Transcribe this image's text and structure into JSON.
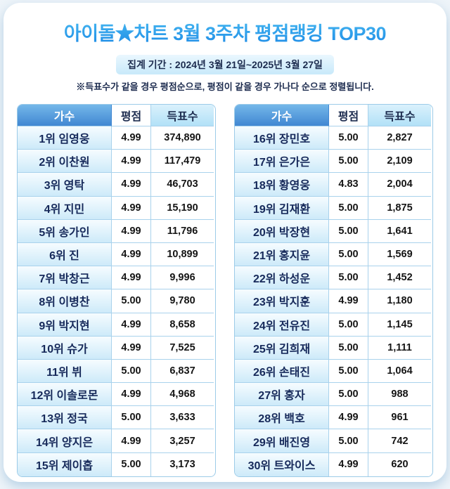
{
  "header": {
    "title": "아이돌★차트 3월 3주차 평점랭킹 TOP30",
    "period": "집계 기간 : 2024년 3월 21일~2025년 3월 27일",
    "note": "※득표수가 같을 경우 평점순으로, 평점이 같을 경우 가나다 순으로 정렬됩니다."
  },
  "colors": {
    "title_gradient_top": "#5fd4f7",
    "title_gradient_bottom": "#1e8be6",
    "header_blue": "#4187d2",
    "cell_light_blue": "#cdeaf9",
    "border_blue": "#a9d2ec"
  },
  "table": {
    "columns": [
      "가수",
      "평점",
      "득표수"
    ],
    "left_rows": [
      {
        "artist": "1위 임영웅",
        "rating": "4.99",
        "votes": "374,890"
      },
      {
        "artist": "2위 이찬원",
        "rating": "4.99",
        "votes": "117,479"
      },
      {
        "artist": "3위 영탁",
        "rating": "4.99",
        "votes": "46,703"
      },
      {
        "artist": "4위 지민",
        "rating": "4.99",
        "votes": "15,190"
      },
      {
        "artist": "5위 송가인",
        "rating": "4.99",
        "votes": "11,796"
      },
      {
        "artist": "6위 진",
        "rating": "4.99",
        "votes": "10,899"
      },
      {
        "artist": "7위 박창근",
        "rating": "4.99",
        "votes": "9,996"
      },
      {
        "artist": "8위 이병찬",
        "rating": "5.00",
        "votes": "9,780"
      },
      {
        "artist": "9위 박지현",
        "rating": "4.99",
        "votes": "8,658"
      },
      {
        "artist": "10위 슈가",
        "rating": "4.99",
        "votes": "7,525"
      },
      {
        "artist": "11위 뷔",
        "rating": "5.00",
        "votes": "6,837"
      },
      {
        "artist": "12위 이솔로몬",
        "rating": "4.99",
        "votes": "4,968"
      },
      {
        "artist": "13위 정국",
        "rating": "5.00",
        "votes": "3,633"
      },
      {
        "artist": "14위 양지은",
        "rating": "4.99",
        "votes": "3,257"
      },
      {
        "artist": "15위 제이홉",
        "rating": "5.00",
        "votes": "3,173"
      }
    ],
    "right_rows": [
      {
        "artist": "16위 장민호",
        "rating": "5.00",
        "votes": "2,827"
      },
      {
        "artist": "17위 은가은",
        "rating": "5.00",
        "votes": "2,109"
      },
      {
        "artist": "18위 황영웅",
        "rating": "4.83",
        "votes": "2,004"
      },
      {
        "artist": "19위 김재환",
        "rating": "5.00",
        "votes": "1,875"
      },
      {
        "artist": "20위 박장현",
        "rating": "5.00",
        "votes": "1,641"
      },
      {
        "artist": "21위 홍지윤",
        "rating": "5.00",
        "votes": "1,569"
      },
      {
        "artist": "22위 하성운",
        "rating": "5.00",
        "votes": "1,452"
      },
      {
        "artist": "23위 박지훈",
        "rating": "4.99",
        "votes": "1,180"
      },
      {
        "artist": "24위 전유진",
        "rating": "5.00",
        "votes": "1,145"
      },
      {
        "artist": "25위 김희재",
        "rating": "5.00",
        "votes": "1,111"
      },
      {
        "artist": "26위 손태진",
        "rating": "5.00",
        "votes": "1,064"
      },
      {
        "artist": "27위 홍자",
        "rating": "5.00",
        "votes": "988"
      },
      {
        "artist": "28위 백호",
        "rating": "4.99",
        "votes": "961"
      },
      {
        "artist": "29위 배진영",
        "rating": "5.00",
        "votes": "742"
      },
      {
        "artist": "30위 트와이스",
        "rating": "4.99",
        "votes": "620"
      }
    ]
  },
  "chart_data": {
    "type": "table",
    "title": "아이돌★차트 3월 3주차 평점랭킹 TOP30",
    "columns": [
      "가수",
      "평점",
      "득표수"
    ],
    "rows": [
      {
        "rank": 1,
        "artist": "임영웅",
        "rating": 4.99,
        "votes": 374890
      },
      {
        "rank": 2,
        "artist": "이찬원",
        "rating": 4.99,
        "votes": 117479
      },
      {
        "rank": 3,
        "artist": "영탁",
        "rating": 4.99,
        "votes": 46703
      },
      {
        "rank": 4,
        "artist": "지민",
        "rating": 4.99,
        "votes": 15190
      },
      {
        "rank": 5,
        "artist": "송가인",
        "rating": 4.99,
        "votes": 11796
      },
      {
        "rank": 6,
        "artist": "진",
        "rating": 4.99,
        "votes": 10899
      },
      {
        "rank": 7,
        "artist": "박창근",
        "rating": 4.99,
        "votes": 9996
      },
      {
        "rank": 8,
        "artist": "이병찬",
        "rating": 5.0,
        "votes": 9780
      },
      {
        "rank": 9,
        "artist": "박지현",
        "rating": 4.99,
        "votes": 8658
      },
      {
        "rank": 10,
        "artist": "슈가",
        "rating": 4.99,
        "votes": 7525
      },
      {
        "rank": 11,
        "artist": "뷔",
        "rating": 5.0,
        "votes": 6837
      },
      {
        "rank": 12,
        "artist": "이솔로몬",
        "rating": 4.99,
        "votes": 4968
      },
      {
        "rank": 13,
        "artist": "정국",
        "rating": 5.0,
        "votes": 3633
      },
      {
        "rank": 14,
        "artist": "양지은",
        "rating": 4.99,
        "votes": 3257
      },
      {
        "rank": 15,
        "artist": "제이홉",
        "rating": 5.0,
        "votes": 3173
      },
      {
        "rank": 16,
        "artist": "장민호",
        "rating": 5.0,
        "votes": 2827
      },
      {
        "rank": 17,
        "artist": "은가은",
        "rating": 5.0,
        "votes": 2109
      },
      {
        "rank": 18,
        "artist": "황영웅",
        "rating": 4.83,
        "votes": 2004
      },
      {
        "rank": 19,
        "artist": "김재환",
        "rating": 5.0,
        "votes": 1875
      },
      {
        "rank": 20,
        "artist": "박장현",
        "rating": 5.0,
        "votes": 1641
      },
      {
        "rank": 21,
        "artist": "홍지윤",
        "rating": 5.0,
        "votes": 1569
      },
      {
        "rank": 22,
        "artist": "하성운",
        "rating": 5.0,
        "votes": 1452
      },
      {
        "rank": 23,
        "artist": "박지훈",
        "rating": 4.99,
        "votes": 1180
      },
      {
        "rank": 24,
        "artist": "전유진",
        "rating": 5.0,
        "votes": 1145
      },
      {
        "rank": 25,
        "artist": "김희재",
        "rating": 5.0,
        "votes": 1111
      },
      {
        "rank": 26,
        "artist": "손태진",
        "rating": 5.0,
        "votes": 1064
      },
      {
        "rank": 27,
        "artist": "홍자",
        "rating": 5.0,
        "votes": 988
      },
      {
        "rank": 28,
        "artist": "백호",
        "rating": 4.99,
        "votes": 961
      },
      {
        "rank": 29,
        "artist": "배진영",
        "rating": 5.0,
        "votes": 742
      },
      {
        "rank": 30,
        "artist": "트와이스",
        "rating": 4.99,
        "votes": 620
      }
    ]
  }
}
